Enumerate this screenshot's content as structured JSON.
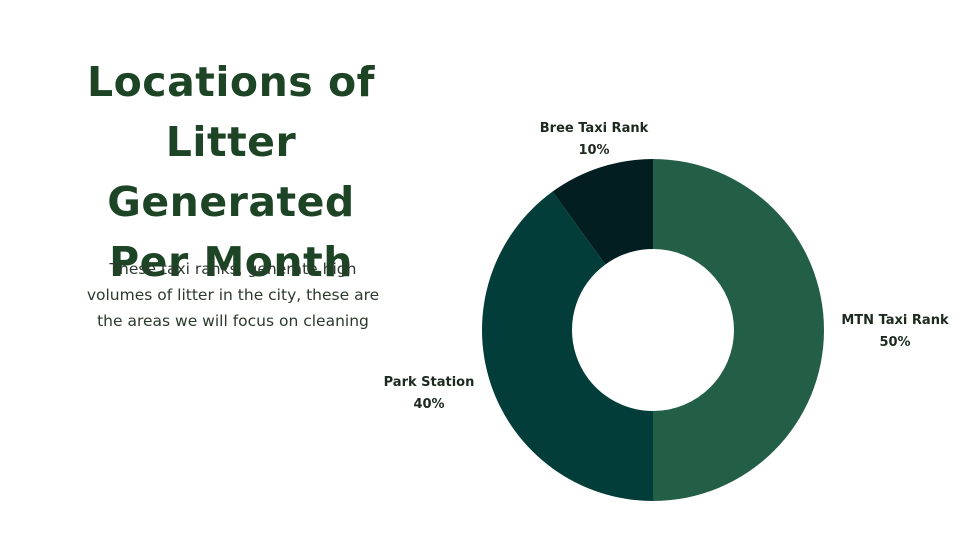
{
  "title_lines": [
    "Locations of",
    "Litter Generated",
    "Per Month"
  ],
  "description_lines": [
    "These taxi ranks, generate high",
    "volumes of litter in the city, these are",
    "the areas we will focus on cleaning"
  ],
  "chart_data": {
    "type": "pie",
    "variant": "donut",
    "title": "Locations of Litter Generated Per Month",
    "start_angle": "12 o'clock, clockwise",
    "slices": [
      {
        "label": "MTN Taxi Rank",
        "value": 50,
        "value_label": "50%",
        "color": "#235e46"
      },
      {
        "label": "Park Station",
        "value": 40,
        "value_label": "40%",
        "color": "#023d3a"
      },
      {
        "label": "Bree Taxi Rank",
        "value": 10,
        "value_label": "10%",
        "color": "#031e21"
      }
    ]
  },
  "colors": {
    "title": "#1c4425",
    "description": "#2c3a2e",
    "label_text": "#1c2a1f",
    "background": "#ffffff"
  }
}
